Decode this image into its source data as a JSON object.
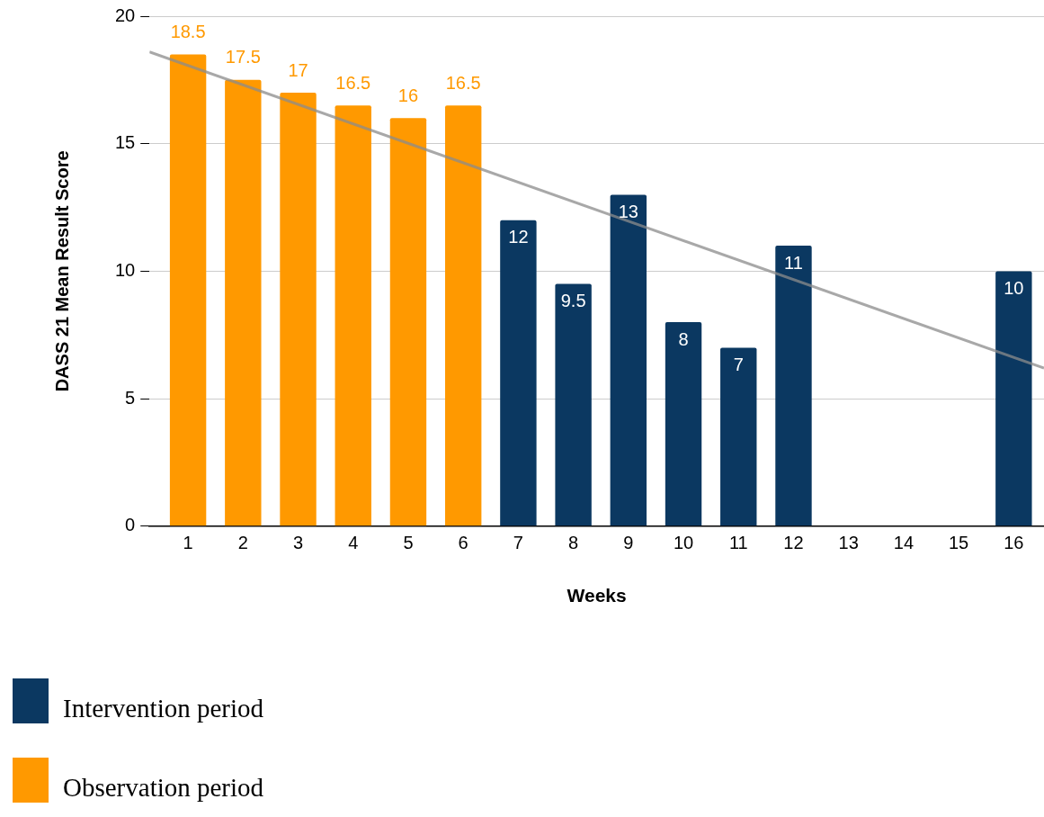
{
  "chart_data": {
    "type": "bar",
    "xlabel": "Weeks",
    "ylabel": "DASS 21 Mean Result Score",
    "x": [
      1,
      2,
      3,
      4,
      5,
      6,
      7,
      8,
      9,
      10,
      11,
      12,
      13,
      14,
      15,
      16
    ],
    "xlim": [
      0.3,
      16.55
    ],
    "xticks": [
      1,
      2,
      3,
      4,
      5,
      6,
      7,
      8,
      9,
      10,
      11,
      12,
      13,
      14,
      15,
      16
    ],
    "ylim": [
      0,
      20
    ],
    "yticks": [
      0,
      5,
      10,
      15,
      20
    ],
    "grid": "y",
    "legend": "bottom left",
    "series": [
      {
        "name": "Intervention period",
        "color": "#0b3861",
        "values": [
          null,
          null,
          null,
          null,
          null,
          null,
          12,
          9.5,
          13,
          8,
          7,
          11,
          null,
          null,
          null,
          10
        ],
        "value_labels": [
          null,
          null,
          null,
          null,
          null,
          null,
          "12",
          "9.5",
          "13",
          "8",
          "7",
          "11",
          null,
          null,
          null,
          "10"
        ]
      },
      {
        "name": "Observation period",
        "color": "#ff9900",
        "values": [
          18.5,
          17.5,
          17,
          16.5,
          16,
          16.5,
          null,
          null,
          null,
          null,
          null,
          null,
          null,
          null,
          null,
          null
        ],
        "value_labels": [
          "18.5",
          "17.5",
          "17",
          "16.5",
          "16",
          "16.5",
          null,
          null,
          null,
          null,
          null,
          null,
          null,
          null,
          null,
          null
        ]
      },
      {
        "type": "line",
        "color": "#8c8c8c",
        "x": [
          0.3,
          16.55
        ],
        "values": [
          18.6,
          6.2
        ]
      }
    ]
  }
}
